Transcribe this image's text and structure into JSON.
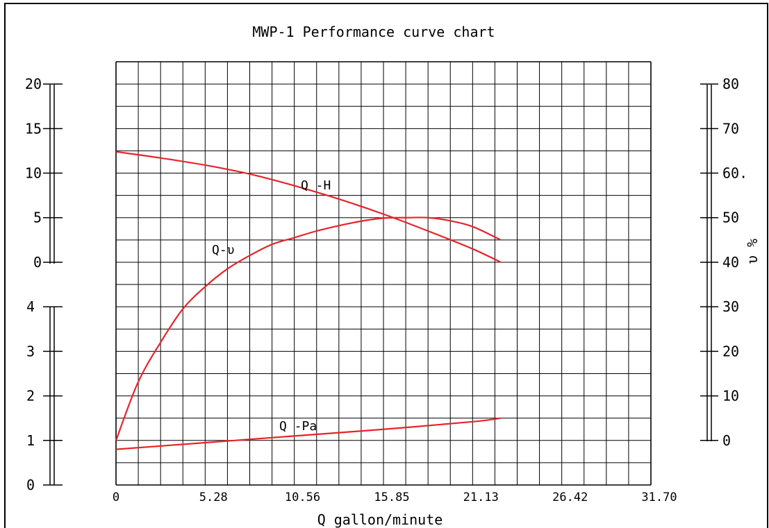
{
  "chart_data": {
    "type": "line",
    "title": "MWP-1 Performance curve chart",
    "xlabel": "Q gallon/minute",
    "x_ticks": [
      "0",
      "5.28",
      "10.56",
      "15.85",
      "21.13",
      "26.42",
      "31.70"
    ],
    "x_range": [
      0,
      31.7
    ],
    "left_axis_upper": {
      "ticks": [
        "20",
        "15",
        "10",
        "5",
        "0"
      ],
      "range": [
        0,
        20
      ]
    },
    "left_axis_lower": {
      "ticks": [
        "4",
        "3",
        "2",
        "1",
        "0"
      ],
      "range": [
        0,
        4
      ]
    },
    "right_axis": {
      "label": "υ %",
      "ticks": [
        "80",
        "70",
        "60.",
        "50",
        "40",
        "30",
        "20",
        "10",
        "0"
      ],
      "range": [
        0,
        80
      ]
    },
    "series": [
      {
        "name": "Q -H",
        "axis": "left-upper",
        "color": "#e8232a",
        "x": [
          0,
          2.64,
          5.28,
          7.92,
          10.56,
          13.2,
          15.85,
          18.5,
          21.13,
          22.8
        ],
        "y": [
          12.4,
          11.7,
          10.9,
          9.9,
          8.6,
          7.1,
          5.4,
          3.5,
          1.5,
          0
        ]
      },
      {
        "name": "Q-υ",
        "axis": "right",
        "color": "#e8232a",
        "x": [
          0,
          1.3,
          2.64,
          3.96,
          5.28,
          6.6,
          7.92,
          9.24,
          10.56,
          11.88,
          13.2,
          14.5,
          15.85,
          17.2,
          18.5,
          19.8,
          21.13,
          22.8
        ],
        "y": [
          0,
          13,
          22,
          29.5,
          34.5,
          38.5,
          41.5,
          44,
          45.5,
          47,
          48.2,
          49.2,
          49.9,
          50,
          50,
          49.3,
          48,
          45
        ]
      },
      {
        "name": "Q -Pa",
        "axis": "left-lower",
        "color": "#e8232a",
        "x": [
          0,
          5.28,
          10.56,
          15.85,
          21.13,
          22.8
        ],
        "y": [
          0.8,
          0.95,
          1.1,
          1.25,
          1.42,
          1.5
        ]
      }
    ],
    "grid": true,
    "legend": "none"
  }
}
